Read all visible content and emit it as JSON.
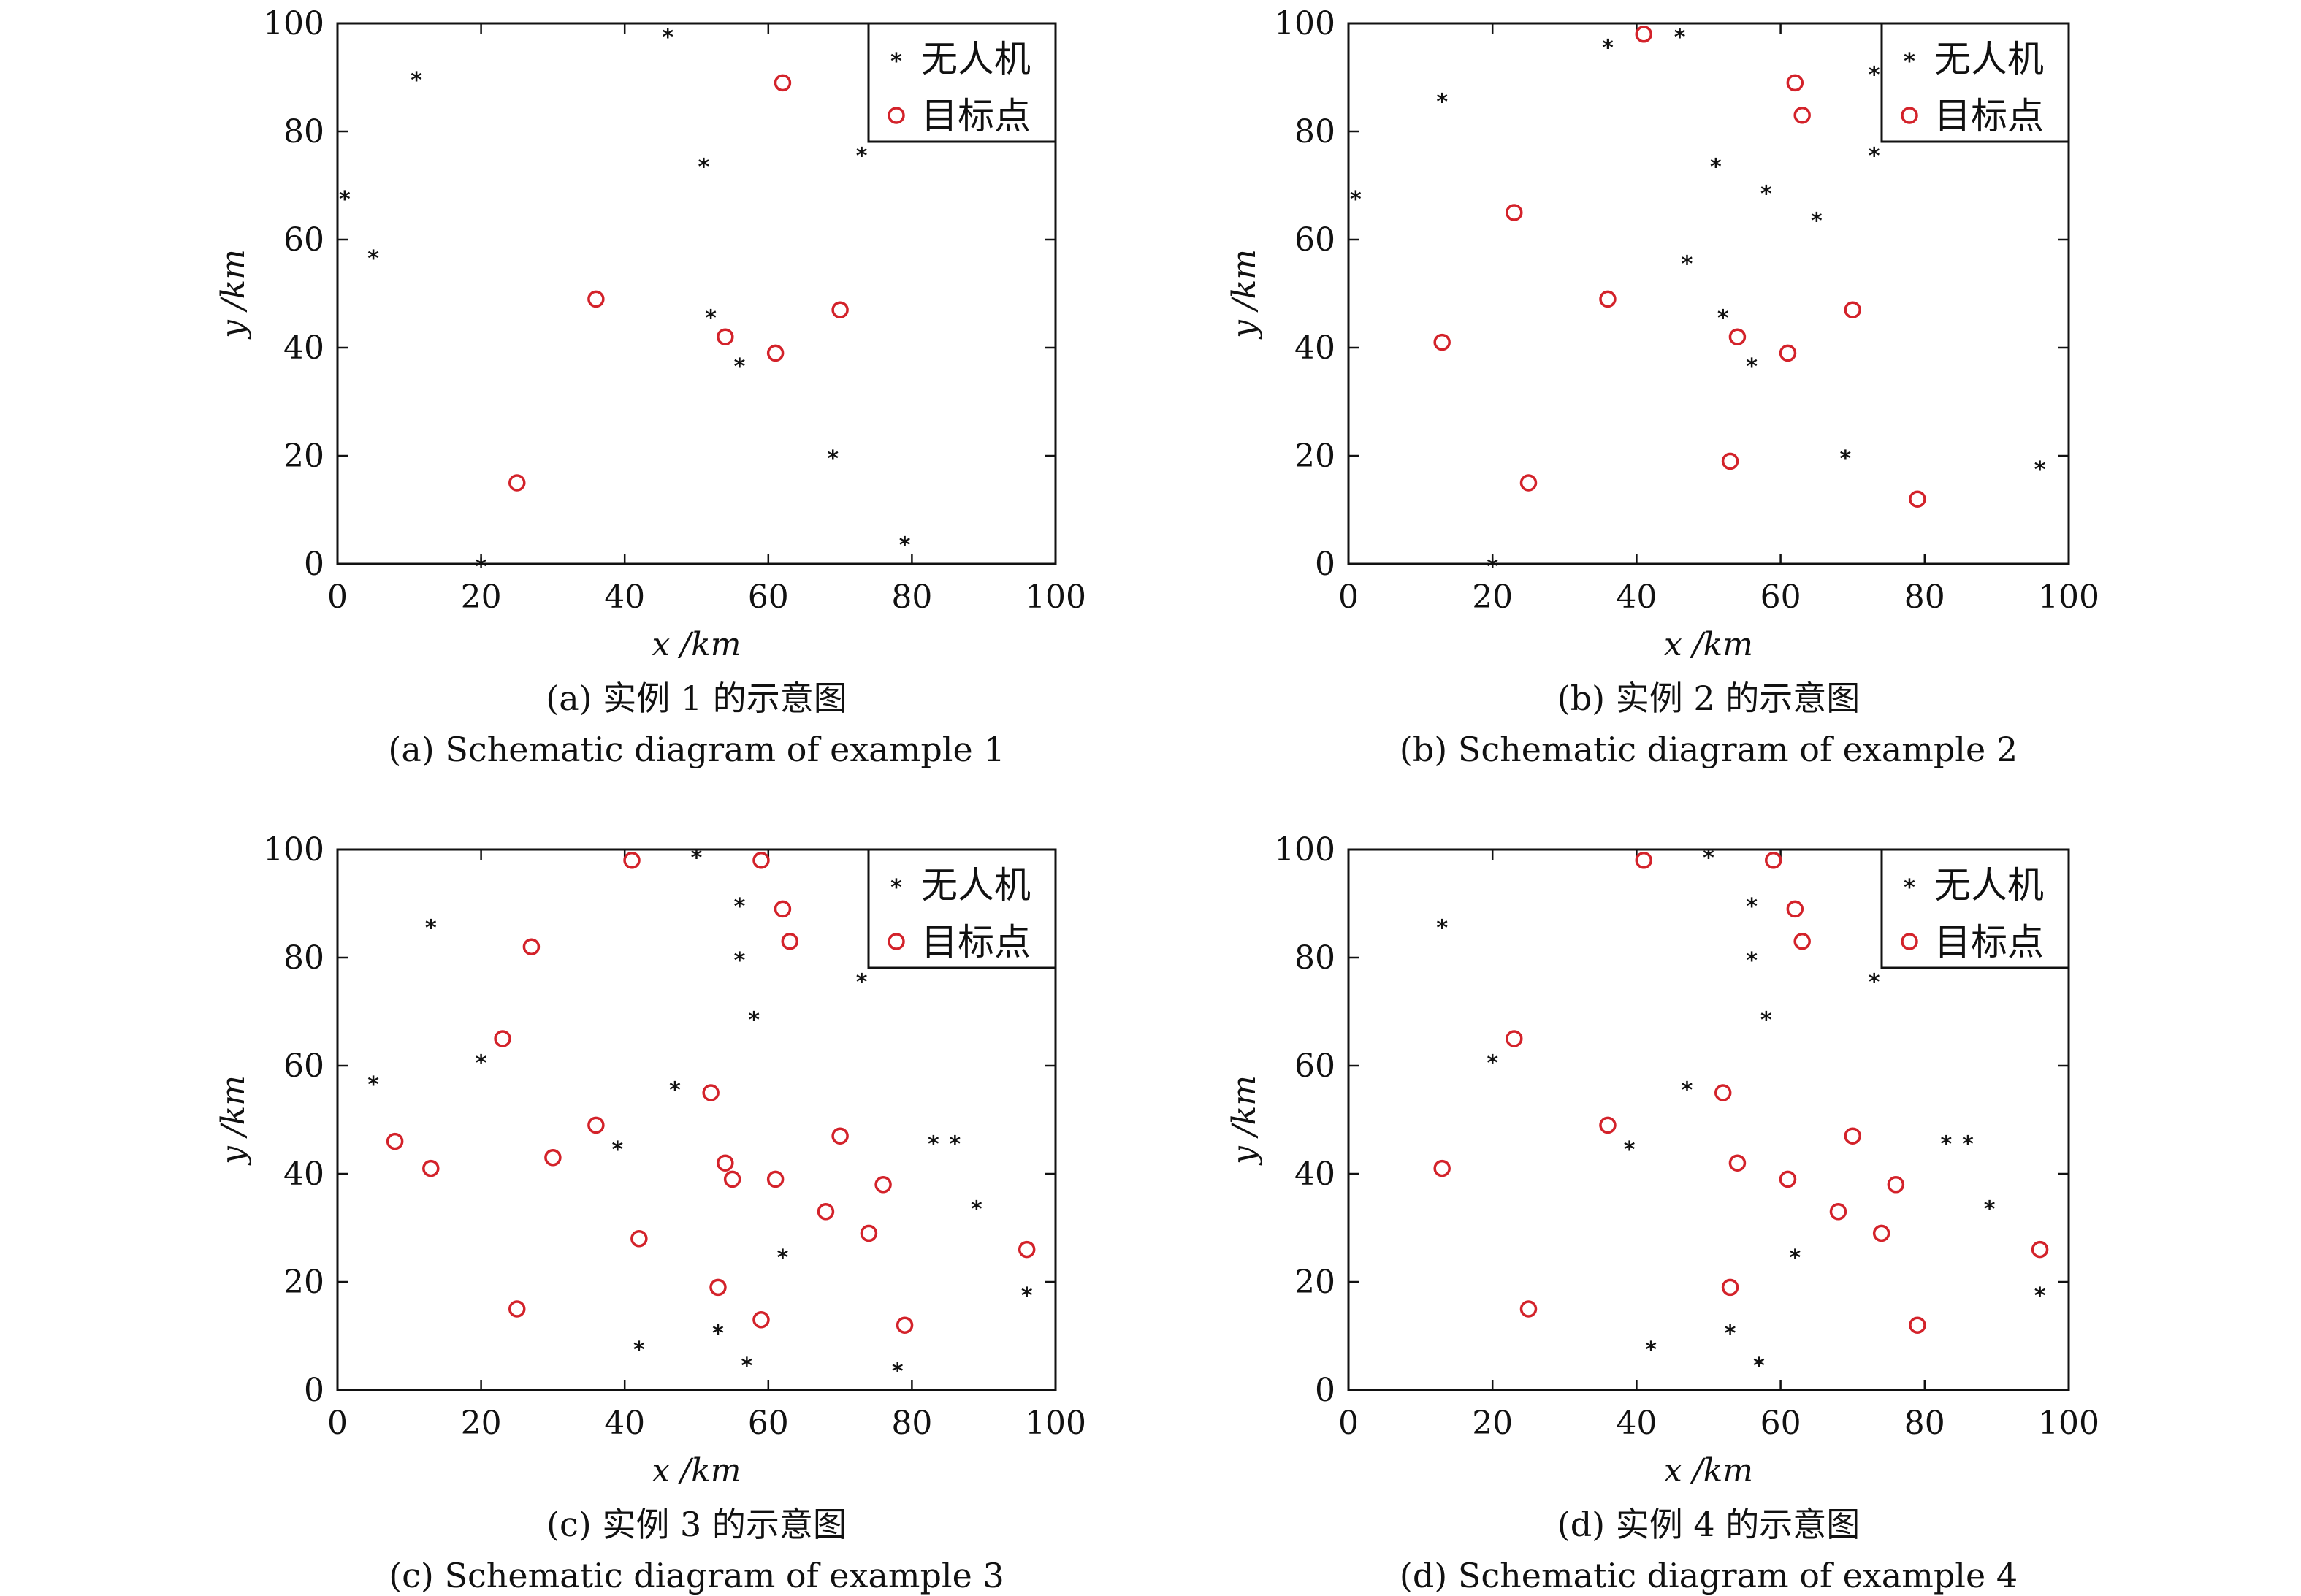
{
  "chart_data": [
    {
      "type": "scatter",
      "xlabel": "x /km",
      "ylabel": "y /km",
      "xlim": [
        0,
        100
      ],
      "ylim": [
        0,
        100
      ],
      "xticks": [
        "0",
        "20",
        "40",
        "60",
        "80",
        "100"
      ],
      "yticks": [
        "0",
        "20",
        "40",
        "60",
        "80",
        "100"
      ],
      "legend": {
        "placement": "top-right"
      },
      "caption_cn": "(a) 实例 1 的示意图",
      "caption_en": "(a) Schematic diagram of example 1",
      "series": [
        {
          "name": "无人机",
          "marker": "star",
          "color": "#111111",
          "x": [
            1,
            5,
            11,
            20,
            46,
            51,
            52,
            56,
            69,
            73,
            79
          ],
          "y": [
            68,
            57,
            90,
            0,
            98,
            74,
            46,
            37,
            20,
            76,
            4
          ]
        },
        {
          "name": "目标点",
          "marker": "circle",
          "color": "#d3222a",
          "x": [
            25,
            36,
            54,
            61,
            62,
            70
          ],
          "y": [
            15,
            49,
            42,
            39,
            89,
            47
          ]
        }
      ]
    },
    {
      "type": "scatter",
      "xlabel": "x /km",
      "ylabel": "y /km",
      "xlim": [
        0,
        100
      ],
      "ylim": [
        0,
        100
      ],
      "xticks": [
        "0",
        "20",
        "40",
        "60",
        "80",
        "100"
      ],
      "yticks": [
        "0",
        "20",
        "40",
        "60",
        "80",
        "100"
      ],
      "legend": {
        "placement": "top-right"
      },
      "caption_cn": "(b) 实例 2 的示意图",
      "caption_en": "(b) Schematic diagram of example 2",
      "series": [
        {
          "name": "无人机",
          "marker": "star",
          "color": "#111111",
          "x": [
            1,
            13,
            20,
            36,
            46,
            47,
            51,
            52,
            56,
            58,
            65,
            69,
            73,
            73,
            96
          ],
          "y": [
            68,
            86,
            0,
            96,
            98,
            56,
            74,
            46,
            37,
            69,
            64,
            20,
            76,
            91,
            18
          ]
        },
        {
          "name": "目标点",
          "marker": "circle",
          "color": "#d3222a",
          "x": [
            13,
            23,
            25,
            36,
            41,
            53,
            54,
            61,
            62,
            63,
            70,
            79
          ],
          "y": [
            41,
            65,
            15,
            49,
            98,
            19,
            42,
            39,
            89,
            83,
            47,
            12
          ]
        }
      ]
    },
    {
      "type": "scatter",
      "xlabel": "x /km",
      "ylabel": "y /km",
      "xlim": [
        0,
        100
      ],
      "ylim": [
        0,
        100
      ],
      "xticks": [
        "0",
        "20",
        "40",
        "60",
        "80",
        "100"
      ],
      "yticks": [
        "0",
        "20",
        "40",
        "60",
        "80",
        "100"
      ],
      "legend": {
        "placement": "top-right"
      },
      "caption_cn": "(c) 实例 3 的示意图",
      "caption_en": "(c) Schematic diagram of example 3",
      "series": [
        {
          "name": "无人机",
          "marker": "star",
          "color": "#111111",
          "x": [
            5,
            13,
            20,
            39,
            42,
            47,
            50,
            53,
            56,
            56,
            57,
            58,
            62,
            73,
            78,
            83,
            86,
            89,
            96
          ],
          "y": [
            57,
            86,
            61,
            45,
            8,
            56,
            99,
            11,
            90,
            80,
            5,
            69,
            25,
            76,
            4,
            46,
            46,
            34,
            18
          ]
        },
        {
          "name": "目标点",
          "marker": "circle",
          "color": "#d3222a",
          "x": [
            8,
            13,
            23,
            25,
            27,
            30,
            36,
            41,
            42,
            52,
            53,
            54,
            55,
            59,
            59,
            61,
            62,
            63,
            68,
            70,
            74,
            76,
            79,
            96
          ],
          "y": [
            46,
            41,
            65,
            15,
            82,
            43,
            49,
            98,
            28,
            55,
            19,
            42,
            39,
            98,
            13,
            39,
            89,
            83,
            33,
            47,
            29,
            38,
            12,
            26
          ]
        }
      ]
    },
    {
      "type": "scatter",
      "xlabel": "x /km",
      "ylabel": "y /km",
      "xlim": [
        0,
        100
      ],
      "ylim": [
        0,
        100
      ],
      "xticks": [
        "0",
        "20",
        "40",
        "60",
        "80",
        "100"
      ],
      "yticks": [
        "0",
        "20",
        "40",
        "60",
        "80",
        "100"
      ],
      "legend": {
        "placement": "top-right"
      },
      "caption_cn": "(d) 实例 4 的示意图",
      "caption_en": "(d) Schematic diagram of example 4",
      "series": [
        {
          "name": "无人机",
          "marker": "star",
          "color": "#111111",
          "x": [
            13,
            20,
            39,
            42,
            47,
            50,
            53,
            56,
            56,
            57,
            58,
            62,
            73,
            83,
            86,
            89,
            96
          ],
          "y": [
            86,
            61,
            45,
            8,
            56,
            99,
            11,
            90,
            80,
            5,
            69,
            25,
            76,
            46,
            46,
            34,
            18
          ]
        },
        {
          "name": "目标点",
          "marker": "circle",
          "color": "#d3222a",
          "x": [
            13,
            23,
            25,
            36,
            41,
            52,
            53,
            54,
            59,
            61,
            62,
            63,
            68,
            70,
            74,
            76,
            79,
            96
          ],
          "y": [
            41,
            65,
            15,
            49,
            98,
            55,
            19,
            42,
            98,
            39,
            89,
            83,
            33,
            47,
            29,
            38,
            12,
            26
          ]
        }
      ]
    }
  ]
}
